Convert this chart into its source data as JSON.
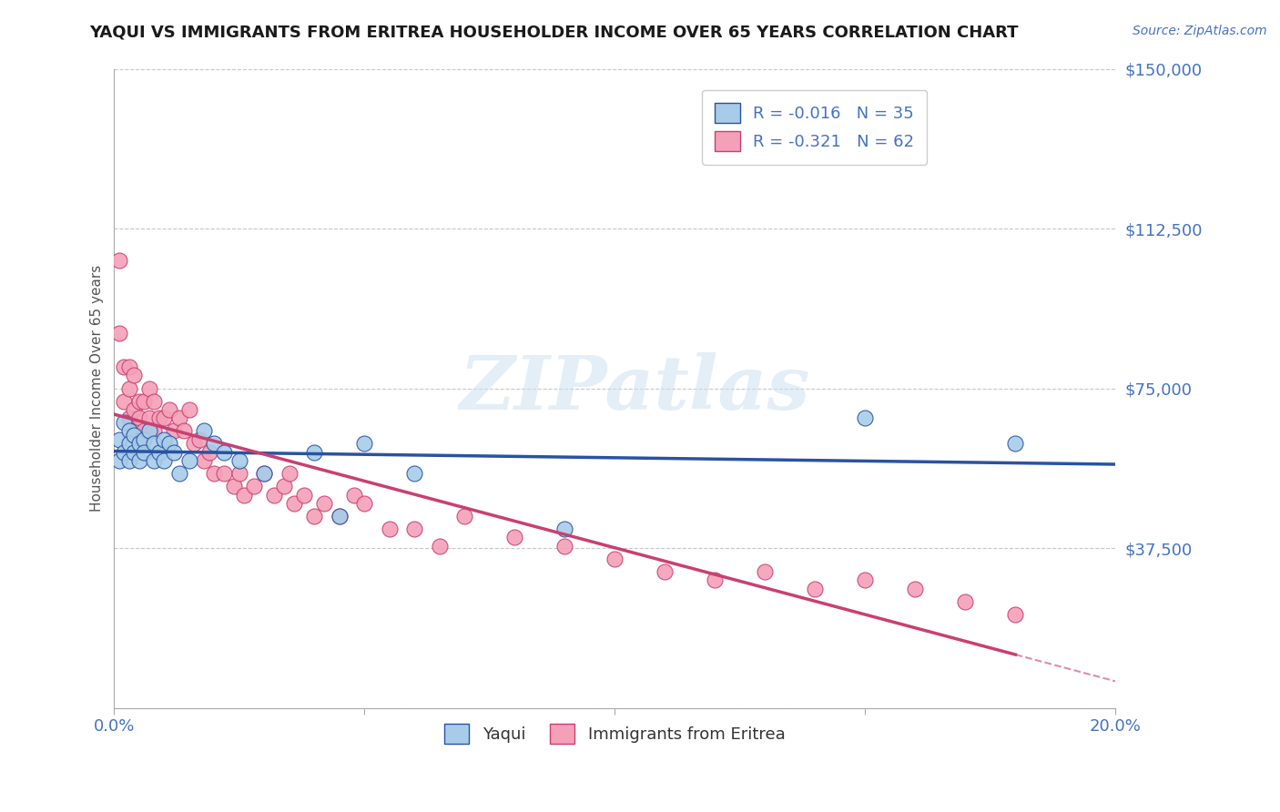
{
  "title": "YAQUI VS IMMIGRANTS FROM ERITREA HOUSEHOLDER INCOME OVER 65 YEARS CORRELATION CHART",
  "source": "Source: ZipAtlas.com",
  "xlabel_yaqui": "Yaqui",
  "xlabel_eritrea": "Immigrants from Eritrea",
  "ylabel": "Householder Income Over 65 years",
  "xlim": [
    0.0,
    0.2
  ],
  "ylim": [
    0,
    150000
  ],
  "yticks": [
    0,
    37500,
    75000,
    112500,
    150000
  ],
  "ytick_labels": [
    "",
    "$37,500",
    "$75,000",
    "$112,500",
    "$150,000"
  ],
  "xticks": [
    0.0,
    0.05,
    0.1,
    0.15,
    0.2
  ],
  "xtick_labels": [
    "0.0%",
    "",
    "",
    "",
    "20.0%"
  ],
  "color_yaqui": "#a8cce8",
  "color_eritrea": "#f4a0b8",
  "color_yaqui_line": "#2952a3",
  "color_eritrea_line": "#c94070",
  "color_title": "#1a1a1a",
  "color_labels": "#4472c4",
  "background_color": "#ffffff",
  "watermark_text": "ZIPatlas",
  "yaqui_x": [
    0.001,
    0.001,
    0.002,
    0.002,
    0.003,
    0.003,
    0.003,
    0.004,
    0.004,
    0.005,
    0.005,
    0.006,
    0.006,
    0.007,
    0.008,
    0.008,
    0.009,
    0.01,
    0.01,
    0.011,
    0.012,
    0.013,
    0.015,
    0.018,
    0.02,
    0.022,
    0.025,
    0.03,
    0.04,
    0.045,
    0.05,
    0.06,
    0.09,
    0.15,
    0.18
  ],
  "yaqui_y": [
    63000,
    58000,
    67000,
    60000,
    65000,
    62000,
    58000,
    64000,
    60000,
    62000,
    58000,
    63000,
    60000,
    65000,
    62000,
    58000,
    60000,
    63000,
    58000,
    62000,
    60000,
    55000,
    58000,
    65000,
    62000,
    60000,
    58000,
    55000,
    60000,
    45000,
    62000,
    55000,
    42000,
    68000,
    62000
  ],
  "eritrea_x": [
    0.001,
    0.001,
    0.002,
    0.002,
    0.003,
    0.003,
    0.003,
    0.004,
    0.004,
    0.004,
    0.005,
    0.005,
    0.005,
    0.006,
    0.006,
    0.007,
    0.007,
    0.008,
    0.008,
    0.009,
    0.01,
    0.011,
    0.012,
    0.013,
    0.014,
    0.015,
    0.016,
    0.017,
    0.018,
    0.019,
    0.02,
    0.022,
    0.024,
    0.025,
    0.026,
    0.028,
    0.03,
    0.032,
    0.034,
    0.035,
    0.036,
    0.038,
    0.04,
    0.042,
    0.045,
    0.048,
    0.05,
    0.055,
    0.06,
    0.065,
    0.07,
    0.08,
    0.09,
    0.1,
    0.11,
    0.12,
    0.13,
    0.14,
    0.15,
    0.16,
    0.17,
    0.18
  ],
  "eritrea_y": [
    105000,
    88000,
    80000,
    72000,
    80000,
    75000,
    68000,
    78000,
    70000,
    65000,
    72000,
    68000,
    63000,
    72000,
    65000,
    75000,
    68000,
    72000,
    65000,
    68000,
    68000,
    70000,
    65000,
    68000,
    65000,
    70000,
    62000,
    63000,
    58000,
    60000,
    55000,
    55000,
    52000,
    55000,
    50000,
    52000,
    55000,
    50000,
    52000,
    55000,
    48000,
    50000,
    45000,
    48000,
    45000,
    50000,
    48000,
    42000,
    42000,
    38000,
    45000,
    40000,
    38000,
    35000,
    32000,
    30000,
    32000,
    28000,
    30000,
    28000,
    25000,
    22000
  ]
}
